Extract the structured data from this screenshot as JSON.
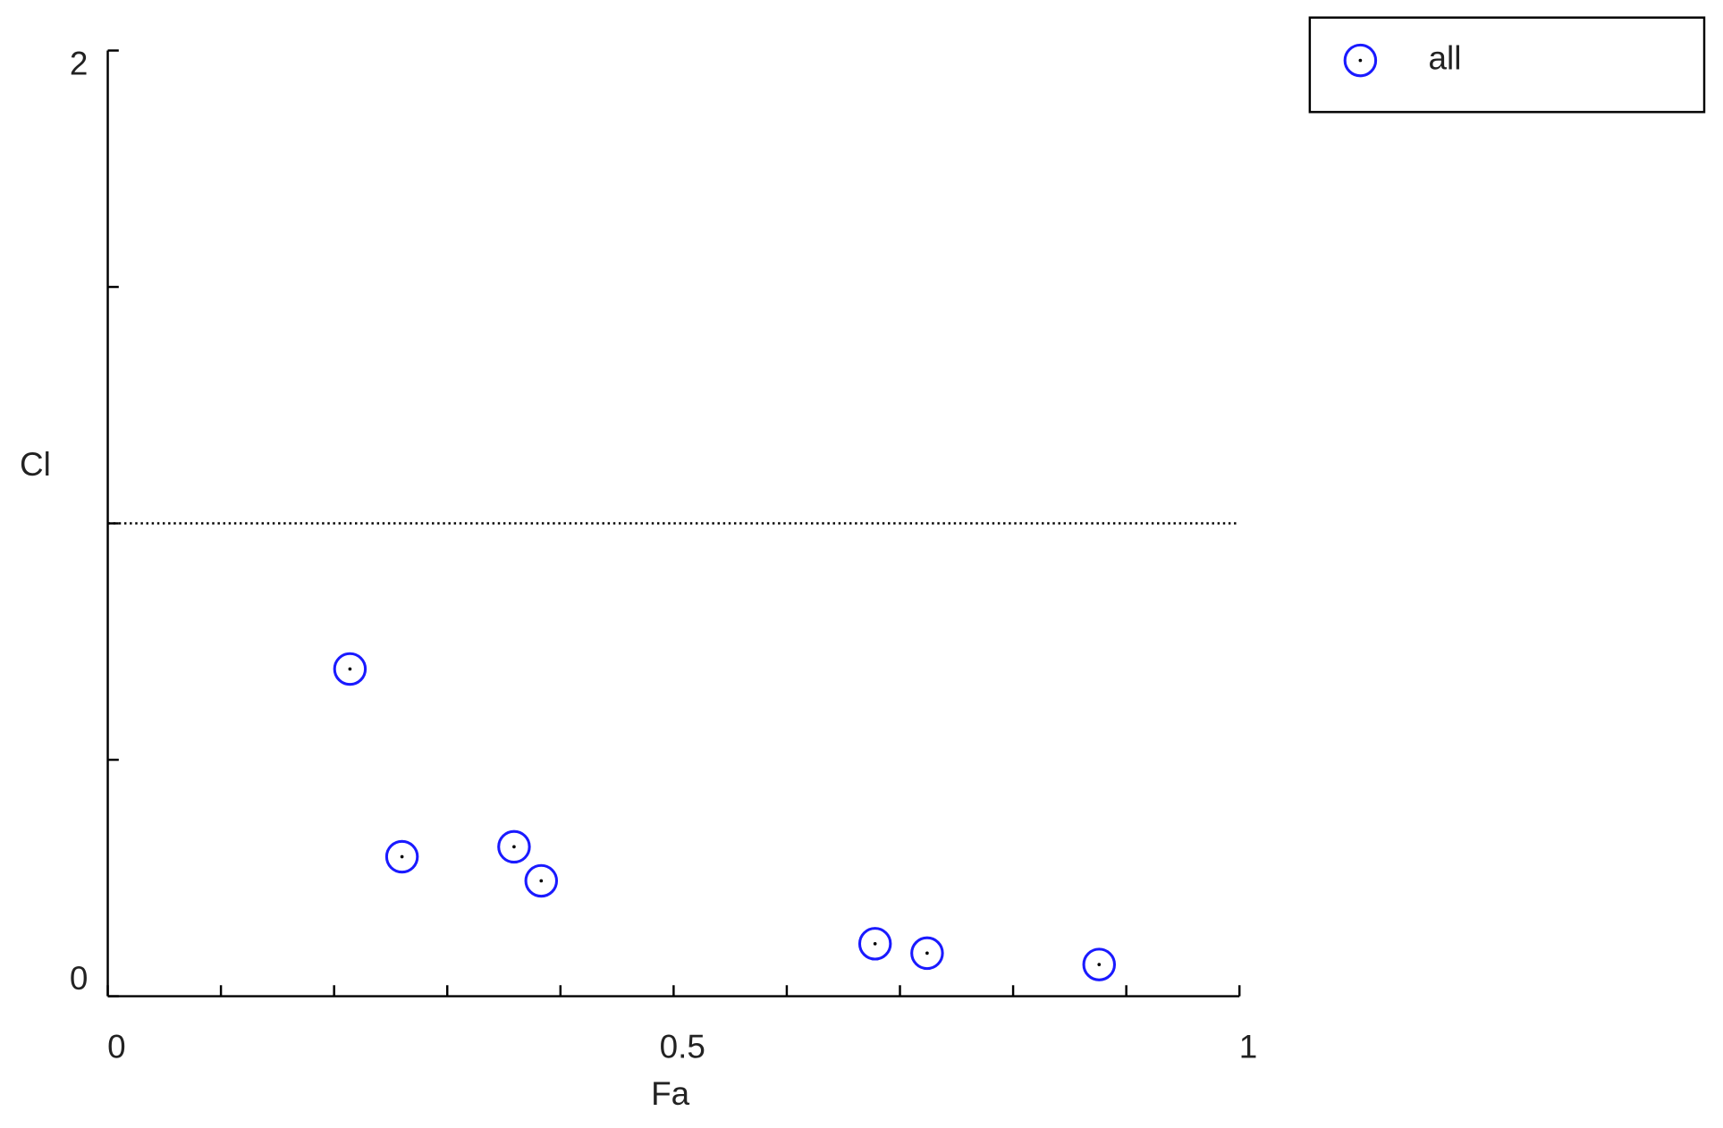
{
  "chart_data": {
    "type": "scatter",
    "x_label": "Fa",
    "y_label": "Cl",
    "xlim": [
      0,
      1
    ],
    "ylim": [
      0,
      2
    ],
    "xticks": [
      0,
      0.5,
      1
    ],
    "xminorticks": [
      0.1,
      0.2,
      0.3,
      0.4,
      0.6,
      0.7,
      0.8,
      0.9
    ],
    "yticks": [
      0,
      2
    ],
    "yminorticks": [
      0.5,
      1,
      1.5
    ],
    "hline": 1,
    "legend": "upper right outside",
    "series": [
      {
        "name": "all",
        "color": "#1a1aff",
        "x": [
          0.214,
          0.26,
          0.359,
          0.383,
          0.678,
          0.724,
          0.876
        ],
        "values": [
          0.692,
          0.295,
          0.316,
          0.244,
          0.111,
          0.091,
          0.067
        ]
      }
    ]
  }
}
